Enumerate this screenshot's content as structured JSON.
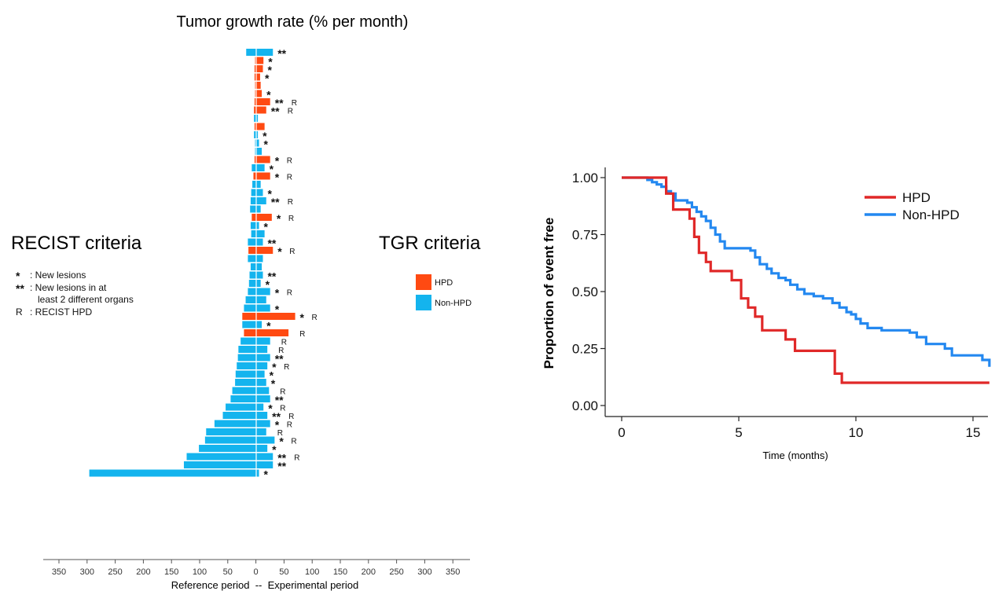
{
  "colors": {
    "hpd": "#ff4a12",
    "nonhpd": "#14b4ee",
    "km_hpd": "#e02828",
    "km_nonhpd": "#2388f0"
  },
  "chart_data": [
    {
      "type": "bar",
      "orientation": "horizontal-diverging",
      "title": "Tumor growth rate (% per month)",
      "xlabel": "Reference period  --  Experimental period",
      "left_caption": "RECIST criteria",
      "right_caption": "TGR criteria",
      "annotation_key": [
        {
          "symbol": "*",
          "text": ": New lesions"
        },
        {
          "symbol": "**",
          "text": ": New lesions in at"
        },
        {
          "symbol": "",
          "text": "least 2 different organs"
        },
        {
          "symbol": "R",
          "text": ": RECIST HPD"
        }
      ],
      "legend": [
        {
          "key": "hpd",
          "label": "HPD"
        },
        {
          "key": "nonhpd",
          "label": "Non-HPD"
        }
      ],
      "x_ticks": [
        "350",
        "300",
        "250",
        "200",
        "150",
        "100",
        "50",
        "0",
        "50",
        "100",
        "150",
        "200",
        "250",
        "300",
        "350"
      ],
      "xlim": [
        -350,
        350
      ],
      "reference_period_tgr": [
        -18,
        -2,
        -3,
        -3,
        -2,
        -2,
        -3,
        -4,
        -4,
        -3,
        -4,
        -2,
        -2,
        -3,
        -8,
        -5,
        -7,
        -9,
        -10,
        -11,
        -8,
        -10,
        -9,
        -15,
        -14,
        -15,
        -10,
        -12,
        -13,
        -15,
        -19,
        -22,
        -25,
        -25,
        -22,
        -28,
        -32,
        -33,
        -35,
        -37,
        -38,
        -43,
        -46,
        -55,
        -60,
        -75,
        -90,
        -92,
        -103,
        -125,
        -130,
        -300
      ],
      "experimental_period_tgr": [
        30,
        13,
        12,
        7,
        8,
        10,
        25,
        18,
        3,
        15,
        3,
        5,
        10,
        25,
        15,
        25,
        8,
        12,
        18,
        8,
        28,
        5,
        15,
        12,
        30,
        12,
        10,
        12,
        8,
        25,
        18,
        25,
        70,
        10,
        58,
        25,
        20,
        25,
        20,
        15,
        18,
        23,
        25,
        13,
        20,
        25,
        18,
        33,
        20,
        30,
        30,
        5
      ],
      "hpd_status": [
        "Non-HPD",
        "HPD",
        "HPD",
        "HPD",
        "HPD",
        "HPD",
        "HPD",
        "HPD",
        "Non-HPD",
        "HPD",
        "Non-HPD",
        "Non-HPD",
        "Non-HPD",
        "HPD",
        "Non-HPD",
        "HPD",
        "Non-HPD",
        "Non-HPD",
        "Non-HPD",
        "Non-HPD",
        "HPD",
        "Non-HPD",
        "Non-HPD",
        "Non-HPD",
        "HPD",
        "Non-HPD",
        "Non-HPD",
        "Non-HPD",
        "Non-HPD",
        "Non-HPD",
        "Non-HPD",
        "Non-HPD",
        "HPD",
        "Non-HPD",
        "HPD",
        "Non-HPD",
        "Non-HPD",
        "Non-HPD",
        "Non-HPD",
        "Non-HPD",
        "Non-HPD",
        "Non-HPD",
        "Non-HPD",
        "Non-HPD",
        "Non-HPD",
        "Non-HPD",
        "Non-HPD",
        "Non-HPD",
        "Non-HPD",
        "Non-HPD",
        "Non-HPD",
        "Non-HPD"
      ],
      "new_lesions_mark": [
        "**",
        "*",
        "*",
        "*",
        "",
        "*",
        "**",
        "**",
        "",
        "",
        "*",
        "*",
        "",
        "*",
        "*",
        "*",
        "",
        "*",
        "**",
        "",
        "*",
        "*",
        "",
        "**",
        "*",
        "",
        "",
        "**",
        "*",
        "*",
        "",
        "*",
        "*",
        "*",
        "",
        "",
        "",
        "**",
        "*",
        "*",
        "*",
        "",
        "**",
        "*",
        "**",
        "*",
        "",
        "*",
        "*",
        "**",
        "**",
        "*"
      ],
      "recist_hpd": [
        false,
        false,
        false,
        false,
        false,
        false,
        true,
        true,
        false,
        false,
        false,
        false,
        false,
        true,
        false,
        true,
        false,
        false,
        true,
        false,
        true,
        false,
        false,
        false,
        true,
        false,
        false,
        false,
        false,
        true,
        false,
        false,
        true,
        false,
        true,
        true,
        true,
        false,
        true,
        false,
        false,
        true,
        false,
        true,
        true,
        true,
        true,
        true,
        false,
        true,
        false,
        false
      ]
    },
    {
      "type": "line",
      "subtype": "kaplan-meier",
      "xlabel": "Time (months)",
      "ylabel": "Proportion of event free",
      "xlim": [
        0,
        15.7
      ],
      "ylim": [
        0,
        1.05
      ],
      "x_ticks": [
        0,
        5,
        10,
        15
      ],
      "y_ticks": [
        "0.00",
        "0.25",
        "0.50",
        "0.75",
        "1.00"
      ],
      "legend_position": "top-right",
      "series": [
        {
          "name": "HPD",
          "color_key": "km_hpd",
          "x": [
            0,
            1.7,
            1.9,
            2.2,
            2.9,
            3.1,
            3.3,
            3.6,
            3.8,
            4.7,
            5.1,
            5.4,
            5.7,
            6.0,
            7.0,
            7.4,
            9.1,
            9.4,
            15.7
          ],
          "y": [
            1.0,
            1.0,
            0.93,
            0.86,
            0.82,
            0.74,
            0.67,
            0.63,
            0.59,
            0.55,
            0.47,
            0.43,
            0.39,
            0.33,
            0.29,
            0.24,
            0.14,
            0.1,
            0.1
          ]
        },
        {
          "name": "Non-HPD",
          "color_key": "km_nonhpd",
          "x": [
            0,
            0.9,
            1.1,
            1.3,
            1.5,
            1.7,
            1.9,
            2.1,
            2.3,
            2.8,
            3.0,
            3.2,
            3.4,
            3.6,
            3.8,
            4.0,
            4.2,
            4.4,
            5.5,
            5.7,
            5.9,
            6.2,
            6.4,
            6.7,
            7.0,
            7.2,
            7.5,
            7.8,
            8.2,
            8.6,
            9.0,
            9.3,
            9.6,
            9.8,
            10.0,
            10.2,
            10.5,
            11.1,
            12.3,
            12.6,
            13.0,
            13.8,
            14.1,
            15.4,
            15.7
          ],
          "y": [
            1.0,
            1.0,
            0.99,
            0.98,
            0.97,
            0.96,
            0.94,
            0.93,
            0.9,
            0.89,
            0.87,
            0.85,
            0.83,
            0.81,
            0.78,
            0.75,
            0.72,
            0.69,
            0.68,
            0.65,
            0.62,
            0.6,
            0.58,
            0.56,
            0.55,
            0.53,
            0.51,
            0.49,
            0.48,
            0.47,
            0.45,
            0.43,
            0.41,
            0.4,
            0.38,
            0.36,
            0.34,
            0.33,
            0.32,
            0.3,
            0.27,
            0.25,
            0.22,
            0.2,
            0.17
          ]
        }
      ]
    }
  ]
}
